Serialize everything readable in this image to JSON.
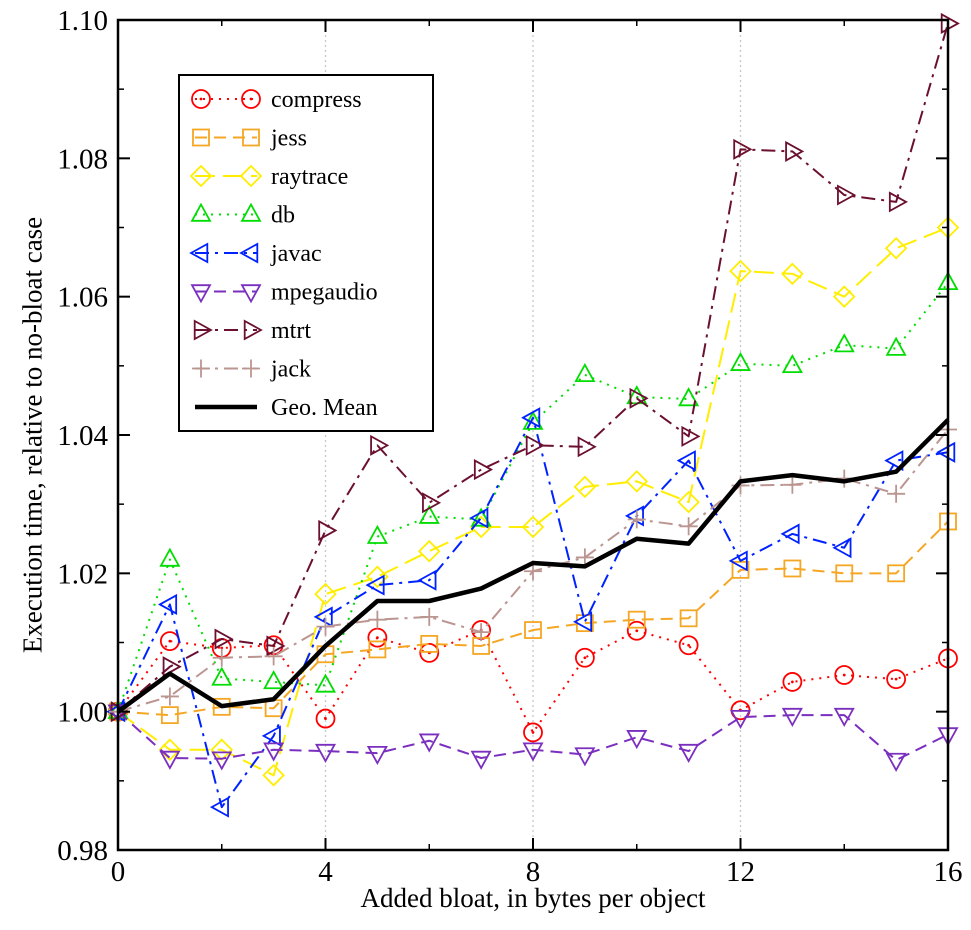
{
  "chart_data": {
    "type": "line",
    "title": "",
    "xlabel": "Added bloat, in bytes per object",
    "ylabel": "Execution time, relative to no-bloat case",
    "xlim": [
      0,
      16
    ],
    "ylim": [
      0.98,
      1.1
    ],
    "x_ticks": [
      0,
      4,
      8,
      12,
      16
    ],
    "x_tick_labels": [
      "0",
      "4",
      "8",
      "12",
      "16"
    ],
    "y_ticks": [
      0.98,
      1.0,
      1.02,
      1.04,
      1.06,
      1.08,
      1.1
    ],
    "y_tick_labels": [
      "0.98",
      "1.00",
      "1.02",
      "1.04",
      "1.06",
      "1.08",
      "1.10"
    ],
    "grid": "vertical dotted at x = 4, 8, 12",
    "legend_position": "top-left",
    "x": [
      0,
      1,
      2,
      3,
      4,
      5,
      6,
      7,
      8,
      9,
      10,
      11,
      12,
      13,
      14,
      15,
      16
    ],
    "series": [
      {
        "name": "compress",
        "color": "#ff0000",
        "marker": "circle",
        "dash": "dotted",
        "values": [
          1.0,
          1.0102,
          1.0092,
          1.0096,
          0.999,
          1.0107,
          1.0085,
          1.0118,
          0.997,
          1.0078,
          1.0117,
          1.0096,
          1.0002,
          1.0043,
          1.0053,
          1.0047,
          1.0077
        ]
      },
      {
        "name": "jess",
        "color": "#f5a623",
        "marker": "square",
        "dash": "dashed",
        "values": [
          1.0,
          0.9995,
          1.0007,
          1.0005,
          1.0083,
          1.009,
          1.0098,
          1.0095,
          1.0118,
          1.0128,
          1.0133,
          1.0135,
          1.0205,
          1.0207,
          1.02,
          1.02,
          1.0275
        ]
      },
      {
        "name": "raytrace",
        "color": "#ffee00",
        "marker": "diamond",
        "dash": "long-dashed",
        "values": [
          1.0,
          0.9945,
          0.9945,
          0.9908,
          1.017,
          1.0195,
          1.0232,
          1.0267,
          1.0267,
          1.0325,
          1.0333,
          1.0303,
          1.0637,
          1.0633,
          1.06,
          1.067,
          1.07
        ]
      },
      {
        "name": "db",
        "color": "#00dd00",
        "marker": "triangle-up",
        "dash": "dotted",
        "values": [
          1.0,
          1.022,
          1.0048,
          1.0043,
          1.0038,
          1.0253,
          1.0282,
          1.0278,
          1.0418,
          1.0487,
          1.0455,
          1.0452,
          1.0503,
          1.05,
          1.053,
          1.0525,
          1.062
        ]
      },
      {
        "name": "javac",
        "color": "#0022ff",
        "marker": "triangle-left",
        "dash": "dash-dot",
        "values": [
          1.0,
          1.0155,
          0.9862,
          0.9965,
          1.0137,
          1.0183,
          1.019,
          1.028,
          1.0425,
          1.013,
          1.0283,
          1.0363,
          1.0218,
          1.0257,
          1.0237,
          1.0363,
          1.0375
        ]
      },
      {
        "name": "mpegaudio",
        "color": "#7b2fbe",
        "marker": "triangle-down",
        "dash": "dashed",
        "values": [
          1.0,
          0.9933,
          0.9932,
          0.9945,
          0.9943,
          0.994,
          0.9958,
          0.9933,
          0.9945,
          0.9938,
          0.9963,
          0.9943,
          0.9992,
          0.9995,
          0.9995,
          0.993,
          0.9967
        ]
      },
      {
        "name": "mtrt",
        "color": "#6b1030",
        "marker": "triangle-right",
        "dash": "dash-dot",
        "values": [
          1.0,
          1.0065,
          1.0105,
          1.0095,
          1.0262,
          1.0385,
          1.0302,
          1.035,
          1.0385,
          1.0383,
          1.0453,
          1.0398,
          1.0813,
          1.081,
          1.0747,
          1.0737,
          1.0995
        ]
      },
      {
        "name": "jack",
        "color": "#bb9590",
        "marker": "plus",
        "dash": "dash-dot",
        "values": [
          1.0,
          1.0022,
          1.0078,
          1.008,
          1.0123,
          1.0133,
          1.0137,
          1.0115,
          1.0203,
          1.0223,
          1.0278,
          1.0268,
          1.0327,
          1.0328,
          1.0337,
          1.0315,
          1.0408
        ]
      },
      {
        "name": "Geo. Mean",
        "color": "#000000",
        "marker": "none",
        "dash": "solid",
        "values": [
          1.0,
          1.0055,
          1.0008,
          1.0018,
          1.0095,
          1.016,
          1.016,
          1.0178,
          1.0215,
          1.021,
          1.025,
          1.0243,
          1.0333,
          1.0342,
          1.0333,
          1.0347,
          1.0422
        ]
      }
    ]
  }
}
